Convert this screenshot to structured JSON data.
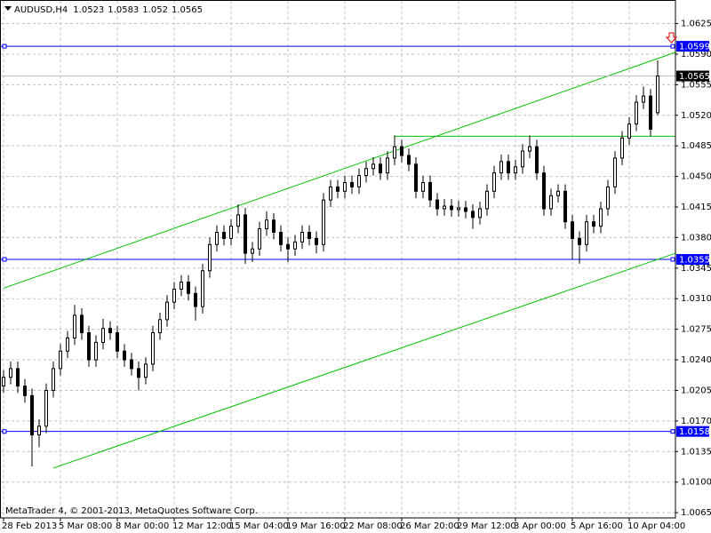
{
  "chart_data": {
    "type": "candlestick",
    "symbol": "AUDUSD,H4",
    "categories": [
      "28 Feb 2013",
      null,
      null,
      null,
      null,
      null,
      null,
      null,
      "5 Mar 08:00",
      null,
      null,
      null,
      null,
      null,
      null,
      null,
      "8 Mar 00:00",
      null,
      null,
      null,
      null,
      null,
      null,
      null,
      "12 Mar 12:00",
      null,
      null,
      null,
      null,
      null,
      null,
      null,
      "15 Mar 04:00",
      null,
      null,
      null,
      null,
      null,
      null,
      null,
      "19 Mar 16:00",
      null,
      null,
      null,
      null,
      null,
      null,
      null,
      "22 Mar 08:00",
      null,
      null,
      null,
      null,
      null,
      null,
      null,
      "26 Mar 20:00",
      null,
      null,
      null,
      null,
      null,
      null,
      null,
      "29 Mar 12:00",
      null,
      null,
      null,
      null,
      null,
      null,
      null,
      "3 Apr 00:00",
      null,
      null,
      null,
      null,
      null,
      null,
      null,
      "5 Apr 16:00",
      null,
      null,
      null,
      null,
      null,
      null,
      null,
      "10 Apr 04:00",
      null,
      null,
      null,
      null
    ],
    "candles": [
      [
        1.021,
        1.0228,
        1.0202,
        1.022
      ],
      [
        1.022,
        1.0238,
        1.0212,
        1.023
      ],
      [
        1.023,
        1.0238,
        1.0202,
        1.021
      ],
      [
        1.021,
        1.0218,
        1.0191,
        1.0199
      ],
      [
        1.0199,
        1.0207,
        1.0118,
        1.0154
      ],
      [
        1.0154,
        1.0172,
        1.014,
        1.0164
      ],
      [
        1.0164,
        1.0213,
        1.0156,
        1.0205
      ],
      [
        1.0205,
        1.0238,
        1.0197,
        1.023
      ],
      [
        1.023,
        1.0258,
        1.0222,
        1.025
      ],
      [
        1.025,
        1.0273,
        1.0242,
        1.0265
      ],
      [
        1.0265,
        1.0303,
        1.0257,
        1.0291
      ],
      [
        1.0291,
        1.0299,
        1.0263,
        1.0271
      ],
      [
        1.0271,
        1.0279,
        1.0232,
        1.024
      ],
      [
        1.024,
        1.0268,
        1.0232,
        1.026
      ],
      [
        1.026,
        1.0287,
        1.0252,
        1.0276
      ],
      [
        1.0276,
        1.0284,
        1.0263,
        1.0271
      ],
      [
        1.0271,
        1.0279,
        1.0242,
        1.025
      ],
      [
        1.025,
        1.0258,
        1.0232,
        1.024
      ],
      [
        1.024,
        1.0248,
        1.0222,
        1.023
      ],
      [
        1.023,
        1.0238,
        1.0205,
        1.022
      ],
      [
        1.022,
        1.0243,
        1.0212,
        1.0235
      ],
      [
        1.0235,
        1.0279,
        1.0227,
        1.0271
      ],
      [
        1.0271,
        1.0294,
        1.0263,
        1.0286
      ],
      [
        1.0286,
        1.0314,
        1.0278,
        1.0306
      ],
      [
        1.0306,
        1.0329,
        1.0298,
        1.0321
      ],
      [
        1.0321,
        1.0337,
        1.0313,
        1.0329
      ],
      [
        1.0329,
        1.0337,
        1.0308,
        1.0316
      ],
      [
        1.0316,
        1.0324,
        1.0285,
        1.0301
      ],
      [
        1.0301,
        1.035,
        1.0293,
        1.0342
      ],
      [
        1.0342,
        1.038,
        1.0334,
        1.0372
      ],
      [
        1.0372,
        1.0394,
        1.0364,
        1.0386
      ],
      [
        1.0386,
        1.0394,
        1.0371,
        1.0379
      ],
      [
        1.0379,
        1.0401,
        1.0371,
        1.0393
      ],
      [
        1.0393,
        1.0418,
        1.0385,
        1.0406
      ],
      [
        1.0406,
        1.0414,
        1.035,
        1.0362
      ],
      [
        1.0362,
        1.0375,
        1.0352,
        1.0367
      ],
      [
        1.0367,
        1.0398,
        1.0359,
        1.039
      ],
      [
        1.039,
        1.041,
        1.0382,
        1.04
      ],
      [
        1.04,
        1.0408,
        1.0378,
        1.0386
      ],
      [
        1.0386,
        1.0394,
        1.0364,
        1.0372
      ],
      [
        1.0372,
        1.038,
        1.0352,
        1.0367
      ],
      [
        1.0367,
        1.0383,
        1.0359,
        1.0375
      ],
      [
        1.0375,
        1.0394,
        1.0367,
        1.0386
      ],
      [
        1.0386,
        1.0394,
        1.0371,
        1.0379
      ],
      [
        1.0379,
        1.0387,
        1.0362,
        1.0372
      ],
      [
        1.0372,
        1.0431,
        1.0364,
        1.0423
      ],
      [
        1.0423,
        1.0446,
        1.0415,
        1.0438
      ],
      [
        1.0438,
        1.0446,
        1.0425,
        1.0433
      ],
      [
        1.0433,
        1.0451,
        1.0425,
        1.0443
      ],
      [
        1.0443,
        1.0451,
        1.043,
        1.0438
      ],
      [
        1.0438,
        1.0459,
        1.043,
        1.0451
      ],
      [
        1.0451,
        1.0467,
        1.0443,
        1.0459
      ],
      [
        1.0459,
        1.0472,
        1.0451,
        1.0464
      ],
      [
        1.0464,
        1.0472,
        1.0446,
        1.0454
      ],
      [
        1.0454,
        1.0479,
        1.0446,
        1.0471
      ],
      [
        1.0471,
        1.0497,
        1.0463,
        1.0484
      ],
      [
        1.0484,
        1.0492,
        1.0466,
        1.0474
      ],
      [
        1.0474,
        1.0482,
        1.0456,
        1.0464
      ],
      [
        1.0464,
        1.0472,
        1.0425,
        1.0433
      ],
      [
        1.0433,
        1.0451,
        1.0425,
        1.0443
      ],
      [
        1.0443,
        1.0451,
        1.0415,
        1.0423
      ],
      [
        1.0423,
        1.0431,
        1.0405,
        1.0413
      ],
      [
        1.0413,
        1.0424,
        1.0405,
        1.0416
      ],
      [
        1.0416,
        1.0424,
        1.0404,
        1.0412
      ],
      [
        1.0412,
        1.0422,
        1.0404,
        1.0414
      ],
      [
        1.0414,
        1.0422,
        1.0402,
        1.041
      ],
      [
        1.041,
        1.0418,
        1.039,
        1.0403
      ],
      [
        1.0403,
        1.0421,
        1.0395,
        1.0413
      ],
      [
        1.0413,
        1.0441,
        1.0405,
        1.0433
      ],
      [
        1.0433,
        1.0462,
        1.0425,
        1.0454
      ],
      [
        1.0454,
        1.0475,
        1.0446,
        1.0467
      ],
      [
        1.0467,
        1.0475,
        1.0446,
        1.0454
      ],
      [
        1.0454,
        1.0469,
        1.0446,
        1.0461
      ],
      [
        1.0461,
        1.0487,
        1.0453,
        1.0479
      ],
      [
        1.0479,
        1.0497,
        1.0471,
        1.0484
      ],
      [
        1.0484,
        1.0492,
        1.0446,
        1.0454
      ],
      [
        1.0454,
        1.0462,
        1.0405,
        1.0413
      ],
      [
        1.0413,
        1.0436,
        1.0405,
        1.0428
      ],
      [
        1.0428,
        1.0441,
        1.042,
        1.0433
      ],
      [
        1.0433,
        1.0441,
        1.039,
        1.0398
      ],
      [
        1.0398,
        1.0406,
        1.0355,
        1.0379
      ],
      [
        1.0379,
        1.0387,
        1.035,
        1.0372
      ],
      [
        1.0372,
        1.0406,
        1.0364,
        1.0398
      ],
      [
        1.0398,
        1.0406,
        1.0385,
        1.0393
      ],
      [
        1.0393,
        1.0421,
        1.0385,
        1.0413
      ],
      [
        1.0413,
        1.0446,
        1.0405,
        1.0438
      ],
      [
        1.0438,
        1.0479,
        1.043,
        1.0471
      ],
      [
        1.0471,
        1.0502,
        1.0463,
        1.0494
      ],
      [
        1.0494,
        1.0518,
        1.0486,
        1.051
      ],
      [
        1.051,
        1.0543,
        1.0502,
        1.0535
      ],
      [
        1.0535,
        1.0553,
        1.0527,
        1.0542
      ],
      [
        1.0542,
        1.055,
        1.0496,
        1.0504
      ],
      [
        1.0523,
        1.0583,
        1.052,
        1.0565
      ]
    ],
    "ylim": [
      1.0059,
      1.0652
    ],
    "yticks": [
      1.0625,
      {
        "value": 1.059,
        "label": "1.0590"
      },
      1.0555,
      {
        "value": 1.052,
        "label": "1.0520"
      },
      1.0485,
      {
        "value": 1.045,
        "label": "1.0450"
      },
      1.0415,
      {
        "value": 1.038,
        "label": "1.0380"
      },
      1.0345,
      {
        "value": 1.031,
        "label": "1.0310"
      },
      1.0275,
      {
        "value": 1.024,
        "label": "1.0240"
      },
      1.0205,
      {
        "value": 1.017,
        "label": "1.0170"
      },
      1.0135,
      {
        "value": 1.01,
        "label": "1.0100"
      },
      1.0065
    ],
    "grid": true,
    "bull_color": "#ffffff",
    "bear_color": "#000000",
    "outline_color": "#000000",
    "bid_color": "#c0c0c0",
    "hlines": [
      {
        "value": 1.0599,
        "color": "#0000ff"
      },
      {
        "value": 1.0355,
        "color": "#0000ff"
      },
      {
        "value": 1.0158,
        "color": "#0000ff"
      }
    ],
    "trendlines": [
      {
        "start": [
          0,
          1.0322
        ],
        "end": [
          92,
          1.0585
        ],
        "color": "#00c000"
      },
      {
        "start": [
          7,
          1.0116
        ],
        "end": [
          92,
          1.0355
        ],
        "color": "#00c000"
      },
      {
        "start": [
          55,
          1.0496
        ],
        "end": [
          92,
          1.0496
        ],
        "color": "#00c000"
      }
    ]
  },
  "footer": "MetaTrader 4, © 2001-2013, MetaQuotes Software Corp."
}
